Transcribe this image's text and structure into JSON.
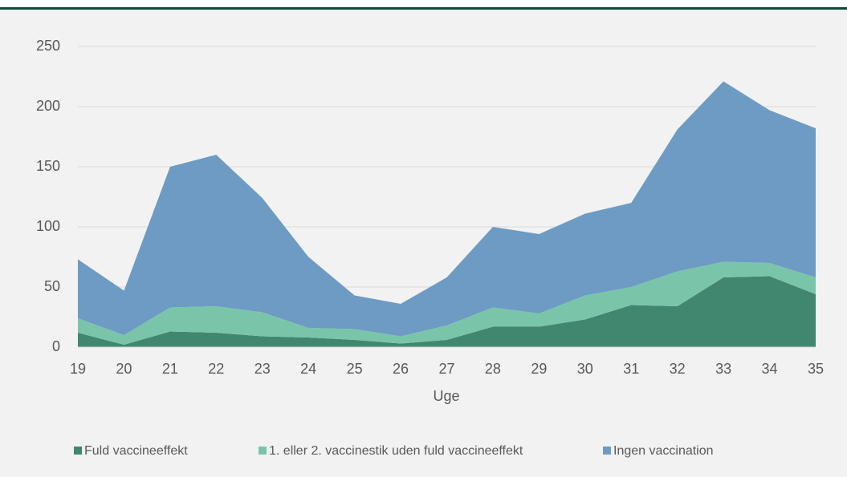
{
  "chart_data": {
    "type": "stacked_area",
    "x_label": "Uge",
    "x": [
      19,
      20,
      21,
      22,
      23,
      24,
      25,
      26,
      27,
      28,
      29,
      30,
      31,
      32,
      33,
      34,
      35
    ],
    "xlim": [
      19,
      35
    ],
    "xticks": [
      19,
      20,
      21,
      22,
      23,
      24,
      25,
      26,
      27,
      28,
      29,
      30,
      31,
      32,
      33,
      34,
      35
    ],
    "ylim": [
      0,
      250
    ],
    "yticks": [
      0,
      50,
      100,
      150,
      200,
      250
    ],
    "grid": true,
    "legend": "bottom",
    "series": [
      {
        "name": "Fuld vaccineeffekt",
        "color": "#41876f",
        "values": [
          12,
          2,
          13,
          12,
          9,
          8,
          6,
          3,
          6,
          17,
          17,
          23,
          35,
          34,
          58,
          59,
          44
        ]
      },
      {
        "name": "1. eller 2. vaccinestik uden fuld vaccineeffekt",
        "color": "#7ac5aa",
        "values": [
          12,
          8,
          20,
          22,
          20,
          8,
          9,
          6,
          12,
          16,
          11,
          20,
          15,
          29,
          13,
          11,
          14
        ]
      },
      {
        "name": "Ingen vaccination",
        "color": "#6d9bc3",
        "values": [
          49,
          37,
          117,
          126,
          95,
          59,
          28,
          27,
          40,
          67,
          66,
          68,
          70,
          118,
          150,
          127,
          124
        ]
      }
    ]
  }
}
